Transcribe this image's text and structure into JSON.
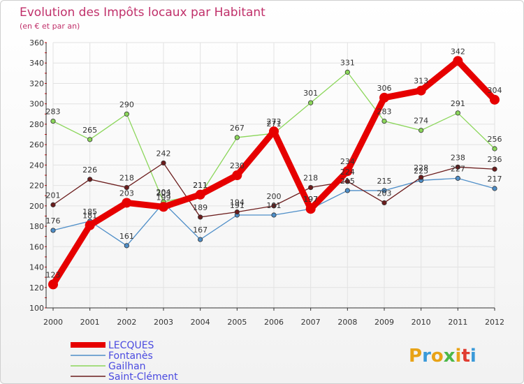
{
  "chart_data": {
    "type": "line",
    "title": "Evolution des Impôts locaux par Habitant",
    "subtitle": "(en € et par an)",
    "xlabel": "",
    "ylabel": "",
    "ylim": [
      100,
      360
    ],
    "yticks": [
      100,
      120,
      140,
      160,
      180,
      200,
      220,
      240,
      260,
      280,
      300,
      320,
      340,
      360
    ],
    "categories": [
      "2000",
      "2001",
      "2002",
      "2003",
      "2004",
      "2005",
      "2006",
      "2007",
      "2008",
      "2009",
      "2010",
      "2011",
      "2012"
    ],
    "grid": true,
    "legend": "bottom-left",
    "series": [
      {
        "name": "LECQUES",
        "color": "#e60000",
        "highlight": true,
        "values": [
          123,
          181,
          203,
          199,
          211,
          230,
          273,
          197,
          234,
          306,
          313,
          342,
          304
        ]
      },
      {
        "name": "Fontanès",
        "color": "#4e8ec8",
        "highlight": false,
        "values": [
          176,
          185,
          161,
          203,
          167,
          191,
          191,
          197,
          215,
          215,
          225,
          227,
          217
        ]
      },
      {
        "name": "Gailhan",
        "color": "#8bd65a",
        "highlight": false,
        "values": [
          283,
          265,
          290,
          204,
          211,
          267,
          271,
          301,
          331,
          283,
          274,
          291,
          256
        ]
      },
      {
        "name": "Saint-Clément",
        "color": "#6b1c1c",
        "highlight": false,
        "values": [
          201,
          226,
          218,
          242,
          189,
          194,
          200,
          218,
          224,
          203,
          228,
          238,
          236
        ]
      }
    ]
  },
  "brand": {
    "letters": [
      "P",
      "r",
      "o",
      "x",
      "i",
      "t",
      "i"
    ],
    "colors": [
      "#e8a317",
      "#3a9ad9",
      "#e8a317",
      "#4cb848",
      "#e8a317",
      "#e03c31",
      "#3a9ad9"
    ]
  }
}
